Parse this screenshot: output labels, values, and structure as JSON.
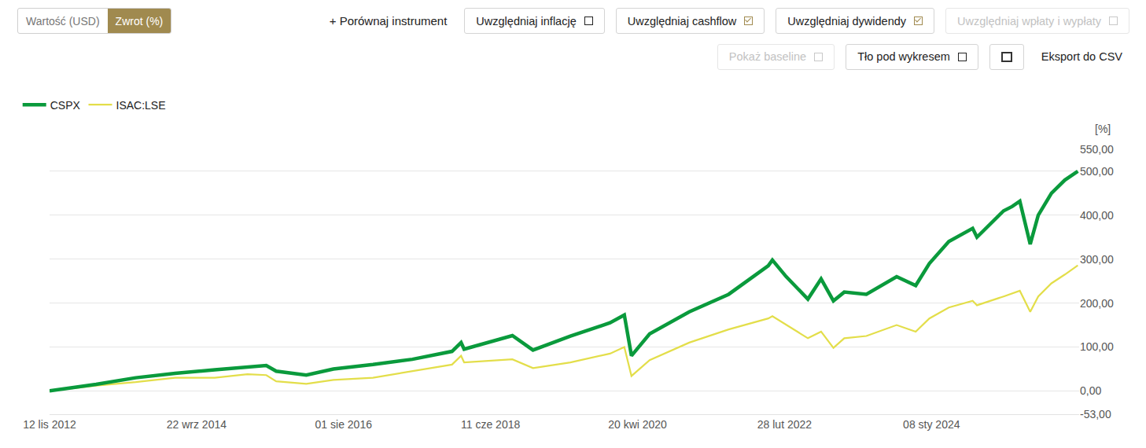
{
  "toolbar": {
    "view_toggle": [
      {
        "label": "Wartość (USD)",
        "active": false
      },
      {
        "label": "Zwrot (%)",
        "active": true
      }
    ],
    "compare": "+ Porównaj instrument",
    "options_row1": [
      {
        "label": "Uwzględniaj inflację",
        "checked": false,
        "enabled": true
      },
      {
        "label": "Uwzględniaj cashflow",
        "checked": true,
        "enabled": true
      },
      {
        "label": "Uwzględniaj dywidendy",
        "checked": true,
        "enabled": true
      },
      {
        "label": "Uwzględniaj wpłaty i wypłaty",
        "checked": false,
        "enabled": false
      }
    ],
    "options_row2": [
      {
        "label": "Pokaż baseline",
        "checked": false,
        "enabled": false
      },
      {
        "label": "Tło pod wykresem",
        "checked": false,
        "enabled": true
      }
    ],
    "export": "Eksport do CSV"
  },
  "chart_data": {
    "type": "line",
    "ylabel": "[%]",
    "x": [
      "2012-11-12",
      "2013-06-15",
      "2013-12-15",
      "2014-06-15",
      "2014-12-15",
      "2015-05-15",
      "2015-08-10",
      "2015-09-25",
      "2016-02-11",
      "2016-06-15",
      "2016-12-15",
      "2017-06-15",
      "2017-12-15",
      "2018-01-26",
      "2018-02-09",
      "2018-09-20",
      "2018-12-24",
      "2019-06-15",
      "2019-12-15",
      "2020-02-19",
      "2020-03-23",
      "2020-06-15",
      "2020-12-15",
      "2021-06-15",
      "2021-12-15",
      "2022-01-03",
      "2022-03-08",
      "2022-06-16",
      "2022-08-16",
      "2022-10-12",
      "2022-12-01",
      "2023-03-13",
      "2023-07-31",
      "2023-10-27",
      "2023-12-29",
      "2024-03-28",
      "2024-07-16",
      "2024-08-05",
      "2024-12-06",
      "2025-01-15",
      "2025-02-19",
      "2025-04-08",
      "2025-05-15",
      "2025-07-15",
      "2025-09-15",
      "2025-11-14"
    ],
    "series": [
      {
        "name": "CSPX",
        "color": "#0a9a3c",
        "values": [
          0,
          15,
          30,
          40,
          48,
          55,
          58,
          45,
          36,
          50,
          60,
          72,
          90,
          110,
          95,
          126,
          93,
          125,
          155,
          173,
          80,
          130,
          180,
          220,
          285,
          298,
          260,
          209,
          255,
          205,
          225,
          220,
          260,
          240,
          290,
          340,
          370,
          350,
          410,
          420,
          432,
          334,
          400,
          450,
          480,
          500
        ]
      },
      {
        "name": "ISAC:LSE",
        "color": "#e3de4a",
        "values": [
          0,
          12,
          20,
          30,
          30,
          38,
          36,
          22,
          16,
          25,
          30,
          45,
          60,
          80,
          65,
          72,
          52,
          65,
          85,
          100,
          34,
          70,
          110,
          140,
          165,
          170,
          150,
          120,
          135,
          98,
          120,
          125,
          150,
          135,
          165,
          190,
          205,
          195,
          215,
          222,
          228,
          180,
          215,
          245,
          265,
          286
        ]
      }
    ],
    "xlim": [
      "2012-11-12",
      "2025-11-20"
    ],
    "xticks": [
      {
        "value": "2012-11-12",
        "label": "12 lis 2012"
      },
      {
        "value": "2014-09-22",
        "label": "22 wrz 2014"
      },
      {
        "value": "2016-08-01",
        "label": "01 sie 2016"
      },
      {
        "value": "2018-06-11",
        "label": "11 cze 2018"
      },
      {
        "value": "2020-04-20",
        "label": "20 kwi 2020"
      },
      {
        "value": "2022-02-28",
        "label": "28 lut 2022"
      },
      {
        "value": "2024-01-08",
        "label": "08 sty 2024"
      }
    ],
    "ylim": [
      -53,
      550
    ],
    "yticks": [
      {
        "value": -53,
        "label": "-53,00"
      },
      {
        "value": 0,
        "label": "0,00"
      },
      {
        "value": 100,
        "label": "100,00"
      },
      {
        "value": 200,
        "label": "200,00"
      },
      {
        "value": 300,
        "label": "300,00"
      },
      {
        "value": 400,
        "label": "400,00"
      },
      {
        "value": 500,
        "label": "500,00"
      },
      {
        "value": 550,
        "label": "550,00"
      }
    ],
    "grid": true,
    "legend": "top-left"
  }
}
